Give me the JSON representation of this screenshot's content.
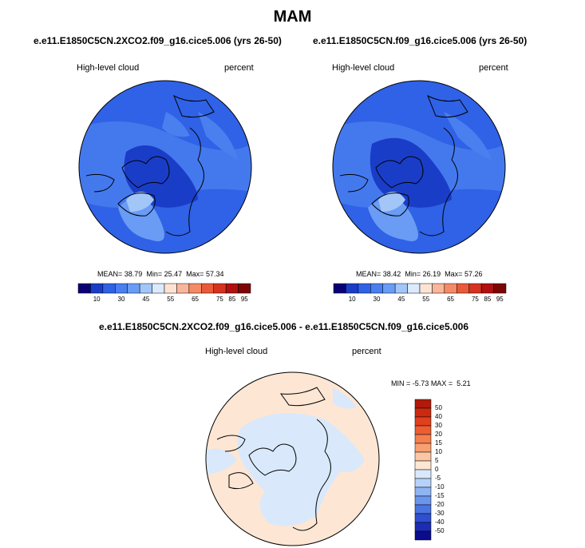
{
  "figure": {
    "title": "MAM"
  },
  "panels": [
    {
      "case": "e.e11.E1850C5CN.2XCO2.f09_g16.cice5.006 (yrs 26-50)",
      "variable": "High-level cloud",
      "units": "percent",
      "stats": {
        "mean_label": "MEAN=",
        "mean": "38.79",
        "min_label": "Min=",
        "min": "25.47",
        "max_label": "Max=",
        "max": "57.34"
      }
    },
    {
      "case": "e.e11.E1850C5CN.f09_g16.cice5.006 (yrs 26-50)",
      "variable": "High-level cloud",
      "units": "percent",
      "stats": {
        "mean_label": "MEAN=",
        "mean": "38.42",
        "min_label": "Min=",
        "min": "26.19",
        "max_label": "Max=",
        "max": "57.26"
      }
    }
  ],
  "abs_colorbar": {
    "colors": [
      "#0c0076",
      "#1a3dc8",
      "#2f62e6",
      "#4a7ff0",
      "#6a9cf5",
      "#a3c6f9",
      "#dbeafd",
      "#fde3d4",
      "#f9b69a",
      "#f58a66",
      "#ea5a3a",
      "#d63220",
      "#b01010",
      "#7c0606"
    ],
    "ticks": [
      "10",
      "30",
      "45",
      "55",
      "65",
      "75",
      "85",
      "95"
    ]
  },
  "diff": {
    "title": "e.e11.E1850C5CN.2XCO2.f09_g16.cice5.006 - e.e11.E1850C5CN.f09_g16.cice5.006",
    "variable": "High-level cloud",
    "units": "percent",
    "min_label": "MIN =",
    "min": "-5.73",
    "max_label": "MAX =",
    "max": "5.21",
    "colorbar": {
      "colors": [
        "#b01a0a",
        "#cc2a10",
        "#e0401e",
        "#ec5e32",
        "#f3804e",
        "#f8a070",
        "#fbc6a4",
        "#fde6d4",
        "#d9e9fb",
        "#b6d2f8",
        "#8fb4f2",
        "#6b95ec",
        "#4a74e2",
        "#2e4fd0",
        "#1c2cb4",
        "#0a0c8c"
      ],
      "ticks": [
        "50",
        "40",
        "30",
        "20",
        "15",
        "10",
        "5",
        "0",
        "-5",
        "-10",
        "-15",
        "-20",
        "-30",
        "-40",
        "-50"
      ]
    }
  }
}
